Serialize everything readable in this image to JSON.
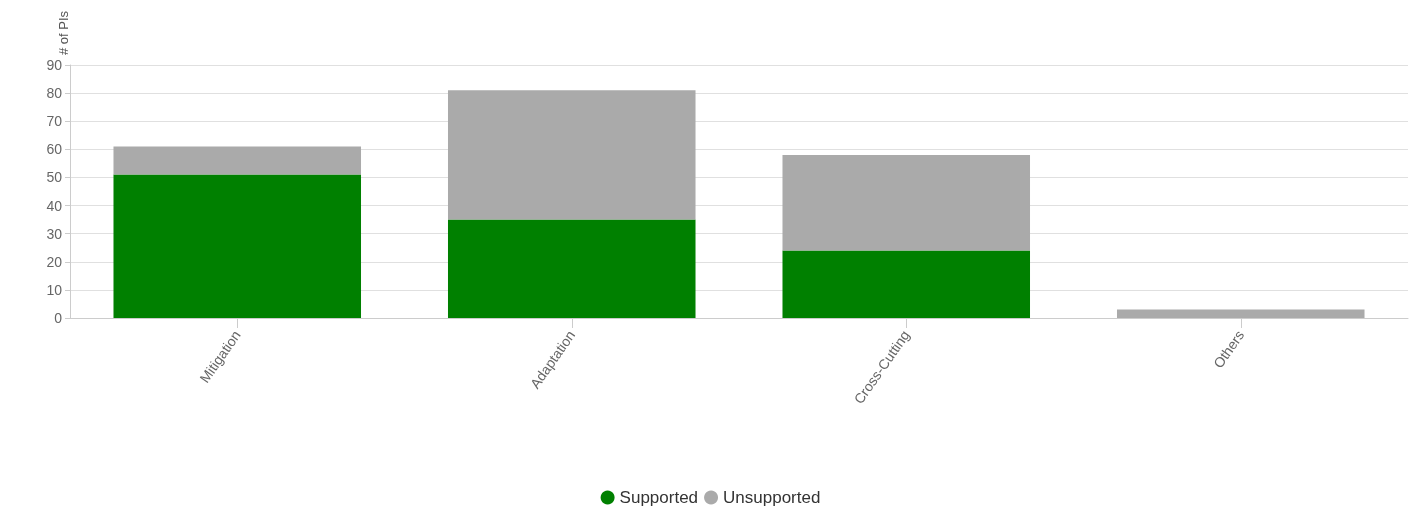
{
  "chart_data": {
    "type": "bar",
    "ylabel": "# of PIs",
    "categories": [
      "Mitigation",
      "Adaptation",
      "Cross-Cutting",
      "Others"
    ],
    "stacked": true,
    "series": [
      {
        "name": "Supported",
        "color": "#008000",
        "values": [
          51,
          35,
          24,
          0
        ]
      },
      {
        "name": "Unsupported",
        "color": "#aaaaaa",
        "values": [
          10,
          46,
          34,
          3
        ]
      }
    ],
    "ylim": [
      0,
      90
    ],
    "yticks": [
      0,
      10,
      20,
      30,
      40,
      50,
      60,
      70,
      80,
      90
    ],
    "grid": "y",
    "legend": "bottom"
  }
}
